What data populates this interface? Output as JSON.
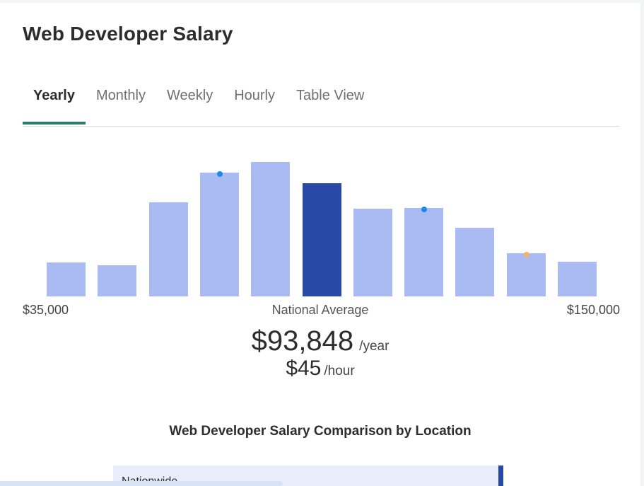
{
  "title": "Web Developer Salary",
  "tabs": [
    {
      "label": "Yearly",
      "active": true
    },
    {
      "label": "Monthly",
      "active": false
    },
    {
      "label": "Weekly",
      "active": false
    },
    {
      "label": "Hourly",
      "active": false
    },
    {
      "label": "Table View",
      "active": false
    }
  ],
  "colors": {
    "bar": "#aabbf3",
    "bar_highlight": "#2849a5",
    "tab_underline": "#2e7d6b",
    "marker_blue": "#1e88e5",
    "marker_orange": "#f6b26b"
  },
  "chart_data": {
    "type": "bar",
    "title": "",
    "xlabel": "",
    "ylabel": "",
    "x_range": [
      "$35,000",
      "$150,000"
    ],
    "bin_count": 11,
    "values": [
      25,
      23,
      70,
      92,
      100,
      84,
      65,
      66,
      51,
      32,
      26
    ],
    "value_scale": "relative (tallest bar = 100, no y-axis shown)",
    "highlight_index": 5,
    "markers": [
      {
        "bar_index": 3,
        "color": "#1e88e5"
      },
      {
        "bar_index": 7,
        "color": "#1e88e5"
      },
      {
        "bar_index": 9,
        "color": "#f6b26b"
      }
    ],
    "axis_min_label": "$35,000",
    "axis_mid_label": "National Average",
    "axis_max_label": "$150,000"
  },
  "average": {
    "yearly": "$93,848",
    "yearly_unit": "/year",
    "hourly": "$45",
    "hourly_unit": "/hour"
  },
  "comparison": {
    "title": "Web Developer Salary Comparison by Location",
    "rows": [
      {
        "label": "Nationwide"
      }
    ]
  }
}
